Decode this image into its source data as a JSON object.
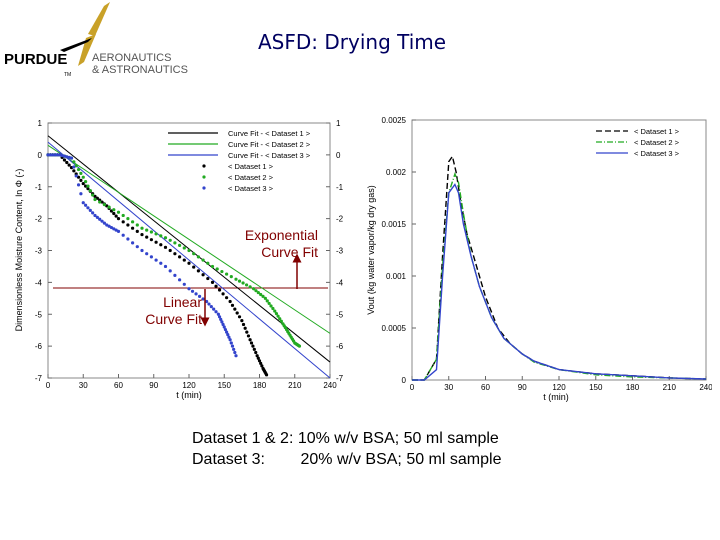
{
  "header": {
    "logo_main": "PURDUE",
    "logo_tm": "TM",
    "logo_line1": "AERONAUTICS",
    "logo_line2": "& ASTRONAUTICS",
    "title": "ASFD: Drying Time"
  },
  "annotations": {
    "exponential_line1": "Exponential",
    "exponential_line2": "Curve Fit",
    "linear_line1": "Linear",
    "linear_line2": "Curve Fit"
  },
  "notes": {
    "line1": "Dataset 1 & 2: 10% w/v BSA; 50 ml sample",
    "line2": "Dataset 3:        20% w/v BSA; 50 ml sample"
  },
  "colors": {
    "dataset1": "#000000",
    "dataset2": "#22aa22",
    "dataset3": "#3344cc",
    "annotation": "#800000",
    "title": "#000060"
  },
  "chart_data": [
    {
      "type": "line",
      "xlabel": "t (min)",
      "ylabel": "Dimensionless Moisture Content, ln Φ (-)",
      "xlim": [
        0,
        240
      ],
      "ylim": [
        -7,
        1
      ],
      "xticks": [
        "0",
        "30",
        "60",
        "90",
        "120",
        "150",
        "180",
        "210",
        "240"
      ],
      "yticks": [
        "1",
        "0",
        "-1",
        "-2",
        "-3",
        "-4",
        "-5",
        "-6",
        "-7"
      ],
      "legend_position": "top-right",
      "legend": [
        "Curve Fit - < Dataset 1 >",
        "Curve Fit - < Dataset 2 >",
        "Curve Fit - < Dataset 3 >",
        "< Dataset 1 >",
        "< Dataset 2 >",
        "< Dataset 3 >"
      ],
      "fits": [
        {
          "x": [
            0,
            240
          ],
          "y": [
            0.6,
            -6.5
          ]
        },
        {
          "x": [
            0,
            240
          ],
          "y": [
            0.3,
            -5.6
          ]
        },
        {
          "x": [
            0,
            240
          ],
          "y": [
            0.4,
            -7.0
          ]
        }
      ],
      "series": [
        {
          "x": [
            0,
            10,
            20,
            30,
            40,
            50,
            60,
            80,
            100,
            120,
            140,
            155,
            165,
            172,
            178,
            183,
            186
          ],
          "y": [
            0,
            0,
            -0.4,
            -0.9,
            -1.3,
            -1.6,
            -2.0,
            -2.5,
            -2.9,
            -3.4,
            -4.0,
            -4.6,
            -5.2,
            -5.8,
            -6.3,
            -6.7,
            -6.9
          ]
        },
        {
          "x": [
            0,
            10,
            20,
            30,
            40,
            60,
            80,
            100,
            120,
            140,
            160,
            175,
            185,
            193,
            200,
            205,
            210,
            214
          ],
          "y": [
            0,
            0,
            -0.1,
            -0.7,
            -1.4,
            -1.8,
            -2.3,
            -2.6,
            -3.0,
            -3.5,
            -3.9,
            -4.2,
            -4.5,
            -4.9,
            -5.3,
            -5.6,
            -5.9,
            -6.0
          ]
        },
        {
          "x": [
            0,
            10,
            20,
            30,
            40,
            50,
            60,
            80,
            100,
            120,
            135,
            145,
            150,
            155,
            160
          ],
          "y": [
            0,
            0,
            -0.1,
            -1.5,
            -1.9,
            -2.2,
            -2.4,
            -3.0,
            -3.5,
            -4.2,
            -4.6,
            -5.0,
            -5.4,
            -5.8,
            -6.3
          ]
        }
      ]
    },
    {
      "type": "line",
      "xlabel": "t (min)",
      "ylabel": "Vout (kg water vapor/kg dry gas)",
      "xlim": [
        0,
        240
      ],
      "ylim": [
        0,
        0.0025
      ],
      "xticks": [
        "0",
        "30",
        "60",
        "90",
        "120",
        "150",
        "180",
        "210",
        "240"
      ],
      "yticks": [
        "0.0025",
        "0.002",
        "0.0015",
        "0.001",
        "0.0005",
        "0"
      ],
      "legend_position": "top-right",
      "legend": [
        "< Dataset 1 >",
        "< Dataset 2 >",
        "< Dataset 3 >"
      ],
      "series": [
        {
          "x": [
            0,
            10,
            20,
            25,
            30,
            33,
            36,
            40,
            45,
            50,
            60,
            70,
            80,
            90,
            100,
            120,
            150,
            180,
            210,
            240
          ],
          "y": [
            0,
            0,
            0.0002,
            0.0012,
            0.0021,
            0.00215,
            0.002,
            0.0017,
            0.0014,
            0.0012,
            0.0008,
            0.0005,
            0.00035,
            0.00025,
            0.00018,
            0.0001,
            6e-05,
            4e-05,
            2e-05,
            1e-05
          ]
        },
        {
          "x": [
            0,
            10,
            20,
            25,
            30,
            35,
            38,
            42,
            48,
            55,
            65,
            75,
            90,
            100,
            120,
            150,
            180,
            210,
            240
          ],
          "y": [
            0,
            0,
            0.0002,
            0.0011,
            0.0018,
            0.00198,
            0.0019,
            0.0016,
            0.0012,
            0.0009,
            0.0006,
            0.0004,
            0.00025,
            0.00017,
            0.0001,
            5e-05,
            3e-05,
            2e-05,
            1e-05
          ]
        },
        {
          "x": [
            0,
            10,
            20,
            25,
            30,
            35,
            38,
            42,
            48,
            55,
            65,
            75,
            90,
            100,
            120,
            150,
            180,
            210,
            240
          ],
          "y": [
            0,
            0,
            0.0001,
            0.001,
            0.0018,
            0.00188,
            0.0018,
            0.0015,
            0.0012,
            0.0009,
            0.0006,
            0.0004,
            0.00025,
            0.00018,
            0.0001,
            6e-05,
            4e-05,
            2e-05,
            1e-05
          ]
        }
      ]
    }
  ]
}
